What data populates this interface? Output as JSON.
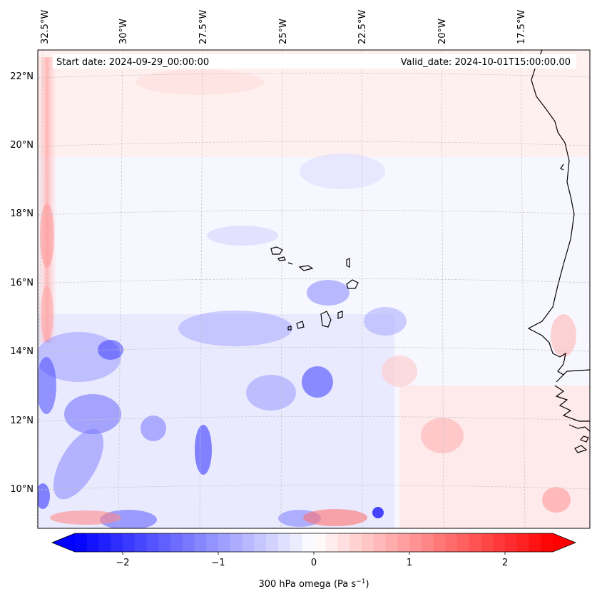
{
  "map": {
    "start_date_text": "Start date: 2024-09-29_00:00:00",
    "valid_date_text": "Valid_date: 2024-10-01T15:00:00.00",
    "lon_labels": [
      "32.5°W",
      "30°W",
      "27.5°W",
      "25°W",
      "22.5°W",
      "20°W",
      "17.5°W"
    ],
    "lat_labels": [
      "22°N",
      "20°N",
      "18°N",
      "16°N",
      "14°N",
      "12°N",
      "10°N"
    ]
  },
  "colorbar": {
    "ticks": [
      "−2",
      "−1",
      "0",
      "1",
      "2"
    ],
    "label_prefix": "300 hPa omega (Pa s",
    "label_exp": "−1",
    "label_suffix": ")",
    "range": [
      -2.6,
      2.6
    ],
    "colors": {
      "min": "#0000ff",
      "mid": "#ffffff",
      "max": "#ff0000"
    }
  }
}
